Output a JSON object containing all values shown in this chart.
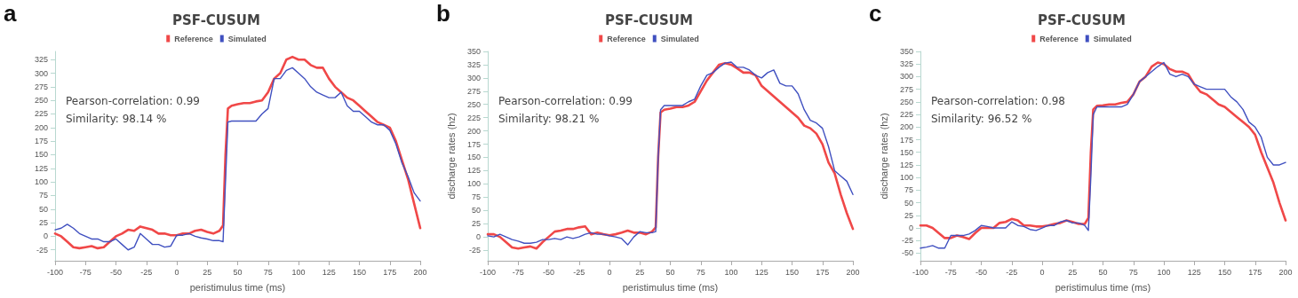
{
  "chart_data": [
    {
      "type": "line",
      "title": "PSF-CUSUM",
      "xlabel": "peristimulus time (ms)",
      "annotations": [
        "a",
        "Pearson-correlation: 0.99",
        "Similarity: 98.14 %"
      ],
      "legend": "top",
      "grid": false,
      "marker": "none",
      "line_style": "solid",
      "xlim": [
        -100,
        200
      ],
      "xticks": [
        -100,
        -75,
        -50,
        -25,
        0,
        25,
        50,
        75,
        100,
        125,
        150,
        175,
        200
      ],
      "ylim": [
        -45,
        340
      ],
      "yticks": [
        -25,
        0,
        25,
        50,
        75,
        100,
        125,
        150,
        175,
        200,
        225,
        250,
        275,
        300,
        325
      ],
      "x": [
        -100,
        -95,
        -90,
        -85,
        -80,
        -75,
        -70,
        -65,
        -60,
        -55,
        -50,
        -45,
        -40,
        -35,
        -30,
        -25,
        -20,
        -15,
        -10,
        -5,
        0,
        5,
        10,
        15,
        20,
        25,
        30,
        35,
        38,
        40,
        42,
        45,
        50,
        55,
        60,
        65,
        70,
        75,
        80,
        85,
        90,
        95,
        100,
        105,
        110,
        115,
        120,
        125,
        130,
        135,
        140,
        145,
        150,
        155,
        160,
        165,
        170,
        175,
        180,
        185,
        190,
        195,
        200
      ],
      "series": [
        {
          "name": "Reference",
          "color": "#f04848",
          "values": [
            5,
            0,
            -10,
            -20,
            -22,
            -20,
            -18,
            -22,
            -20,
            -10,
            0,
            5,
            12,
            10,
            18,
            15,
            12,
            5,
            5,
            2,
            2,
            5,
            5,
            10,
            12,
            8,
            5,
            10,
            20,
            150,
            235,
            240,
            243,
            245,
            245,
            248,
            250,
            265,
            290,
            300,
            325,
            330,
            325,
            325,
            315,
            310,
            310,
            290,
            275,
            265,
            255,
            250,
            240,
            230,
            220,
            210,
            205,
            200,
            175,
            140,
            105,
            60,
            15
          ]
        },
        {
          "name": "Simulated",
          "color": "#4050c0",
          "values": [
            12,
            15,
            22,
            15,
            5,
            0,
            -5,
            -5,
            -10,
            -10,
            -5,
            -15,
            -25,
            -20,
            5,
            -5,
            -15,
            -15,
            -20,
            -18,
            2,
            2,
            5,
            0,
            -3,
            -5,
            -8,
            -8,
            -10,
            100,
            210,
            212,
            212,
            212,
            212,
            212,
            225,
            235,
            290,
            290,
            305,
            310,
            300,
            290,
            275,
            265,
            260,
            255,
            255,
            265,
            240,
            230,
            230,
            220,
            210,
            205,
            205,
            195,
            170,
            135,
            110,
            80,
            65
          ]
        }
      ]
    },
    {
      "type": "line",
      "title": "PSF-CUSUM",
      "xlabel": "peristimulus time (ms)",
      "ylabel": "discharge rates (hz)",
      "annotations": [
        "b",
        "Pearson-correlation: 0.99",
        "Similarity: 98.21 %"
      ],
      "legend": "top",
      "grid": false,
      "marker": "none",
      "line_style": "solid",
      "xlim": [
        -100,
        200
      ],
      "xticks": [
        -100,
        -75,
        -50,
        -25,
        0,
        25,
        50,
        75,
        100,
        125,
        150,
        175,
        200
      ],
      "ylim": [
        -45,
        350
      ],
      "yticks": [
        -25,
        0,
        25,
        50,
        75,
        100,
        125,
        150,
        175,
        200,
        225,
        250,
        275,
        300,
        325,
        350
      ],
      "x": [
        -100,
        -95,
        -90,
        -85,
        -80,
        -75,
        -70,
        -65,
        -60,
        -55,
        -50,
        -45,
        -40,
        -35,
        -30,
        -25,
        -20,
        -15,
        -10,
        -5,
        0,
        5,
        10,
        15,
        20,
        25,
        30,
        35,
        38,
        40,
        42,
        45,
        50,
        55,
        60,
        65,
        70,
        75,
        80,
        85,
        90,
        95,
        100,
        105,
        110,
        115,
        120,
        125,
        130,
        135,
        140,
        145,
        150,
        155,
        160,
        165,
        170,
        175,
        180,
        185,
        190,
        195,
        200
      ],
      "series": [
        {
          "name": "Reference",
          "color": "#f04848",
          "values": [
            5,
            5,
            0,
            -10,
            -20,
            -22,
            -20,
            -18,
            -22,
            -10,
            0,
            10,
            12,
            15,
            15,
            18,
            20,
            5,
            8,
            5,
            3,
            5,
            8,
            12,
            8,
            8,
            5,
            10,
            18,
            150,
            235,
            240,
            242,
            245,
            245,
            248,
            255,
            275,
            295,
            310,
            325,
            328,
            325,
            318,
            310,
            310,
            305,
            285,
            275,
            265,
            255,
            245,
            235,
            225,
            210,
            205,
            195,
            175,
            140,
            120,
            80,
            45,
            15
          ]
        },
        {
          "name": "Simulated",
          "color": "#4050c0",
          "values": [
            2,
            0,
            5,
            0,
            -5,
            -8,
            -12,
            -12,
            -10,
            -5,
            -5,
            -3,
            -5,
            0,
            -3,
            0,
            5,
            8,
            5,
            5,
            2,
            0,
            -3,
            -15,
            0,
            10,
            8,
            8,
            10,
            150,
            240,
            248,
            248,
            248,
            248,
            255,
            260,
            285,
            305,
            310,
            320,
            328,
            330,
            320,
            320,
            315,
            305,
            300,
            310,
            315,
            290,
            285,
            285,
            270,
            240,
            220,
            215,
            205,
            170,
            125,
            115,
            105,
            80
          ]
        }
      ]
    },
    {
      "type": "line",
      "title": "PSF-CUSUM",
      "xlabel": "peristimulus time (ms)",
      "ylabel": "discharge rates (hz)",
      "annotations": [
        "c",
        "Pearson-correlation: 0.98",
        "Similarity: 96.52 %"
      ],
      "legend": "top",
      "grid": false,
      "marker": "none",
      "line_style": "solid",
      "xlim": [
        -100,
        200
      ],
      "xticks": [
        -100,
        -75,
        -50,
        -25,
        0,
        25,
        50,
        75,
        100,
        125,
        150,
        175,
        200
      ],
      "ylim": [
        -65,
        350
      ],
      "yticks": [
        -50,
        -25,
        0,
        25,
        50,
        75,
        100,
        125,
        150,
        175,
        200,
        225,
        250,
        275,
        300,
        325,
        350
      ],
      "x": [
        -100,
        -95,
        -90,
        -85,
        -80,
        -75,
        -70,
        -65,
        -60,
        -55,
        -50,
        -45,
        -40,
        -35,
        -30,
        -25,
        -20,
        -15,
        -10,
        -5,
        0,
        5,
        10,
        15,
        20,
        25,
        30,
        35,
        38,
        40,
        42,
        45,
        50,
        55,
        60,
        65,
        70,
        75,
        80,
        85,
        90,
        95,
        100,
        105,
        110,
        115,
        120,
        125,
        130,
        135,
        140,
        145,
        150,
        155,
        160,
        165,
        170,
        175,
        180,
        185,
        190,
        195,
        200
      ],
      "series": [
        {
          "name": "Reference",
          "color": "#f04848",
          "values": [
            5,
            5,
            0,
            -10,
            -20,
            -20,
            -15,
            -18,
            -22,
            -10,
            0,
            0,
            0,
            10,
            12,
            18,
            15,
            5,
            5,
            3,
            3,
            5,
            8,
            10,
            15,
            12,
            8,
            8,
            20,
            150,
            235,
            242,
            243,
            245,
            245,
            248,
            250,
            265,
            290,
            300,
            320,
            328,
            325,
            315,
            310,
            310,
            305,
            285,
            270,
            265,
            255,
            245,
            240,
            230,
            220,
            210,
            200,
            185,
            150,
            120,
            90,
            50,
            15
          ]
        },
        {
          "name": "Simulated",
          "color": "#4050c0",
          "values": [
            -40,
            -38,
            -35,
            -40,
            -40,
            -15,
            -15,
            -15,
            -12,
            -5,
            5,
            3,
            0,
            0,
            0,
            12,
            5,
            3,
            -3,
            -5,
            0,
            5,
            5,
            12,
            15,
            10,
            10,
            5,
            -5,
            100,
            225,
            240,
            240,
            240,
            240,
            240,
            245,
            265,
            290,
            300,
            310,
            320,
            328,
            305,
            300,
            305,
            300,
            285,
            280,
            275,
            275,
            275,
            275,
            260,
            250,
            235,
            210,
            200,
            180,
            140,
            125,
            125,
            130
          ]
        }
      ]
    }
  ]
}
